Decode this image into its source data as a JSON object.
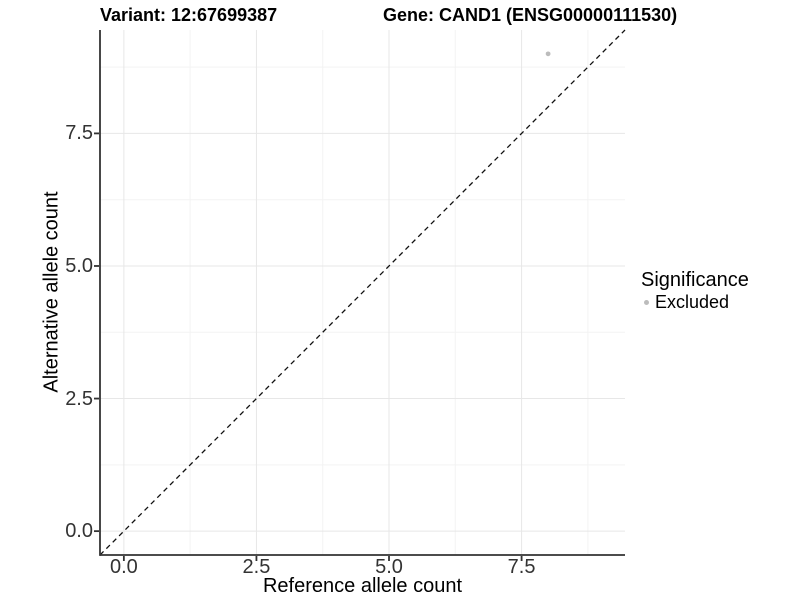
{
  "page": {
    "background": "#ffffff"
  },
  "chart_data": {
    "type": "scatter",
    "title_left": "Variant: 12:67699387",
    "title_right": "Gene: CAND1 (ENSG00000111530)",
    "xlabel": "Reference allele count",
    "ylabel": "Alternative allele count",
    "xlim": [
      -0.45,
      9.45
    ],
    "ylim": [
      -0.45,
      9.45
    ],
    "x_ticks": {
      "values": [
        0,
        2.5,
        5,
        7.5
      ],
      "labels": [
        "0.0",
        "2.5",
        "5.0",
        "7.5"
      ]
    },
    "y_ticks": {
      "values": [
        0,
        2.5,
        5,
        7.5
      ],
      "labels": [
        "0.0",
        "2.5",
        "5.0",
        "7.5"
      ]
    },
    "x_minor": [
      1.25,
      3.75,
      6.25,
      8.75
    ],
    "y_minor": [
      1.25,
      3.75,
      6.25,
      8.75
    ],
    "grid": true,
    "points": [
      {
        "x": 8,
        "y": 9,
        "series": "Excluded"
      }
    ],
    "reference_line": {
      "kind": "identity",
      "slope": 1,
      "intercept": 0,
      "style": "dashed",
      "color": "#111111"
    },
    "legend": {
      "title": "Significance",
      "position": "right",
      "items": [
        {
          "label": "Excluded",
          "color": "#bcbcbc"
        }
      ]
    },
    "colors": {
      "point": "#bcbcbc",
      "axis_line": "#333333",
      "grid_major": "#e7e7e7",
      "grid_minor": "#f3f3f3",
      "tick_text": "#333333"
    }
  }
}
